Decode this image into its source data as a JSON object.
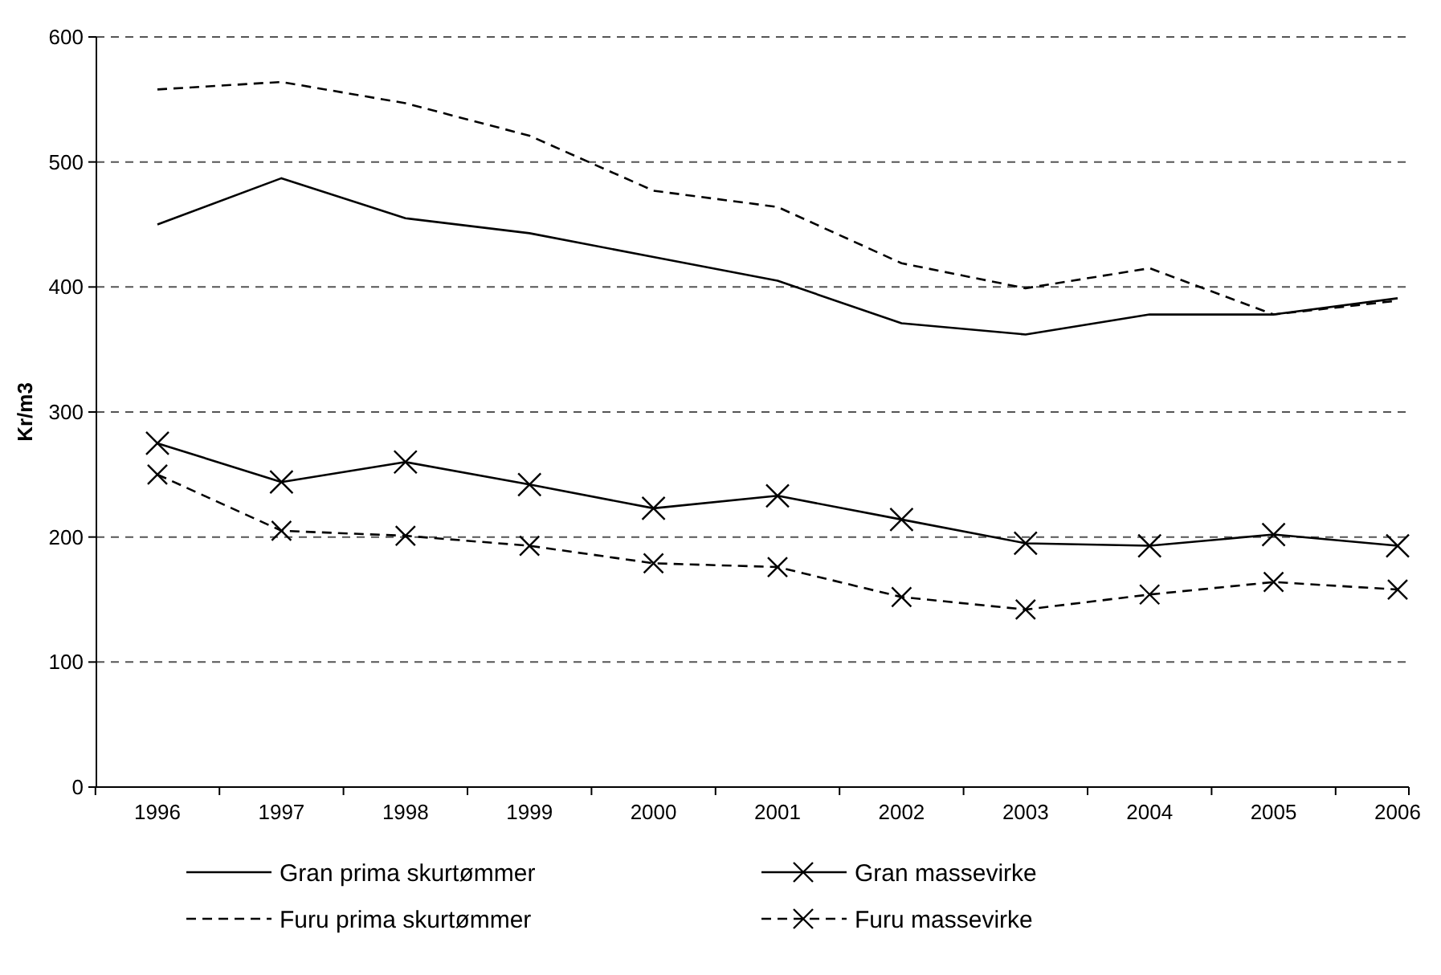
{
  "chart_data": {
    "type": "line",
    "ylabel": "Kr/m3",
    "categories": [
      "1996",
      "1997",
      "1998",
      "1999",
      "2000",
      "2001",
      "2002",
      "2003",
      "2004",
      "2005",
      "2006"
    ],
    "ylim": [
      0,
      600
    ],
    "yticks": [
      0,
      100,
      200,
      300,
      400,
      500,
      600
    ],
    "grid": "y",
    "legend": "bottom",
    "series": [
      {
        "name": "Gran prima skurtømmer",
        "color": "#000000",
        "line_style": "solid",
        "marker": "none",
        "values": [
          450,
          487,
          455,
          443,
          424,
          405,
          371,
          362,
          378,
          378,
          391
        ]
      },
      {
        "name": "Gran massevirke",
        "color": "#000000",
        "line_style": "solid",
        "marker": "cross",
        "values": [
          275,
          244,
          260,
          242,
          223,
          233,
          214,
          195,
          193,
          202,
          193
        ]
      },
      {
        "name": "Furu prima skurtømmer",
        "color": "#000000",
        "line_style": "dashed",
        "marker": "none",
        "values": [
          558,
          564,
          547,
          521,
          477,
          464,
          419,
          399,
          415,
          378,
          389
        ]
      },
      {
        "name": "Furu massevirke",
        "color": "#000000",
        "line_style": "dashed",
        "marker": "cross",
        "values": [
          250,
          205,
          201,
          193,
          179,
          176,
          152,
          142,
          154,
          164,
          158
        ]
      }
    ]
  }
}
